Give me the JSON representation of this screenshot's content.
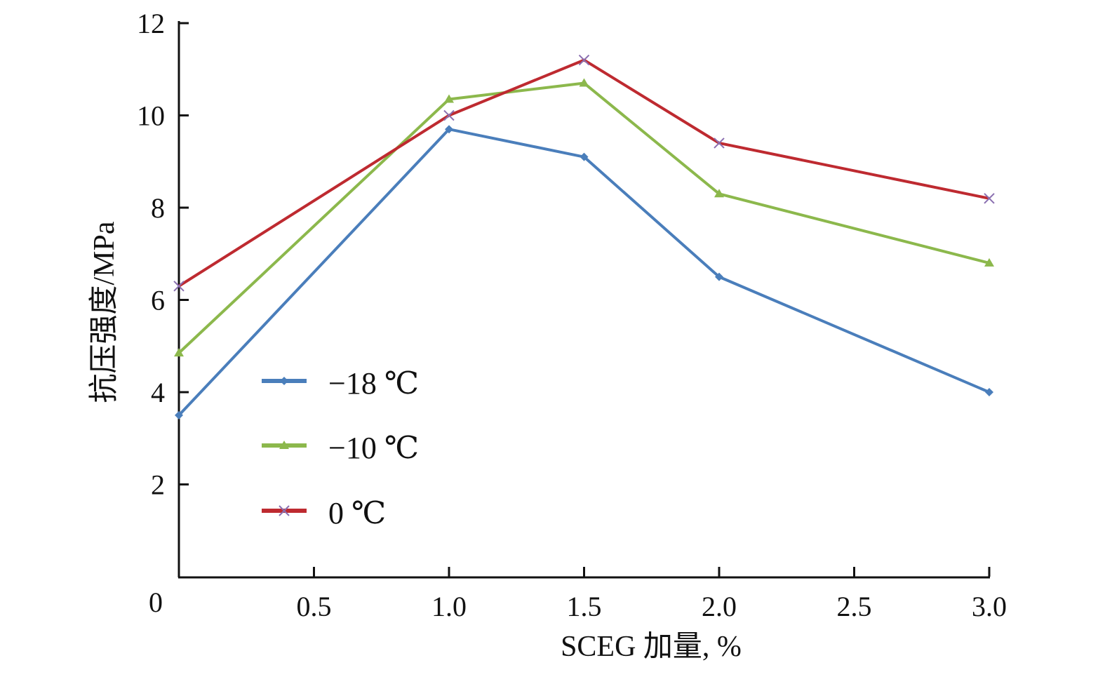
{
  "chart_data": {
    "type": "line",
    "title": "",
    "xlabel": "SCEG 加量, %",
    "ylabel": "抗压强度/MPa",
    "x": [
      0,
      1.0,
      1.5,
      2.0,
      3.0
    ],
    "xlim": [
      0,
      3.0
    ],
    "ylim": [
      0,
      12
    ],
    "x_ticks": [
      "0.5",
      "1.0",
      "1.5",
      "2.0",
      "2.5",
      "3.0"
    ],
    "x_tick_values": [
      0.5,
      1.0,
      1.5,
      2.0,
      2.5,
      3.0
    ],
    "y_ticks": [
      "2",
      "4",
      "6",
      "8",
      "10",
      "12"
    ],
    "y_tick_values": [
      2,
      4,
      6,
      8,
      10,
      12
    ],
    "origin_label": "0",
    "grid": false,
    "legend_position": "lower-left",
    "series": [
      {
        "name": "−18 ℃",
        "color": "#4a7ebb",
        "marker": "diamond",
        "marker_color": "#4a7ebb",
        "values": [
          3.5,
          9.7,
          9.1,
          6.5,
          4.0
        ]
      },
      {
        "name": "−10 ℃",
        "color": "#8cb84c",
        "marker": "triangle",
        "marker_color": "#8cb84c",
        "values": [
          4.85,
          10.35,
          10.7,
          8.3,
          6.8
        ]
      },
      {
        "name": "0 ℃",
        "color": "#be2a30",
        "marker": "x",
        "marker_color": "#8a6fb0",
        "values": [
          6.3,
          10.0,
          11.2,
          9.4,
          8.2
        ]
      }
    ]
  }
}
